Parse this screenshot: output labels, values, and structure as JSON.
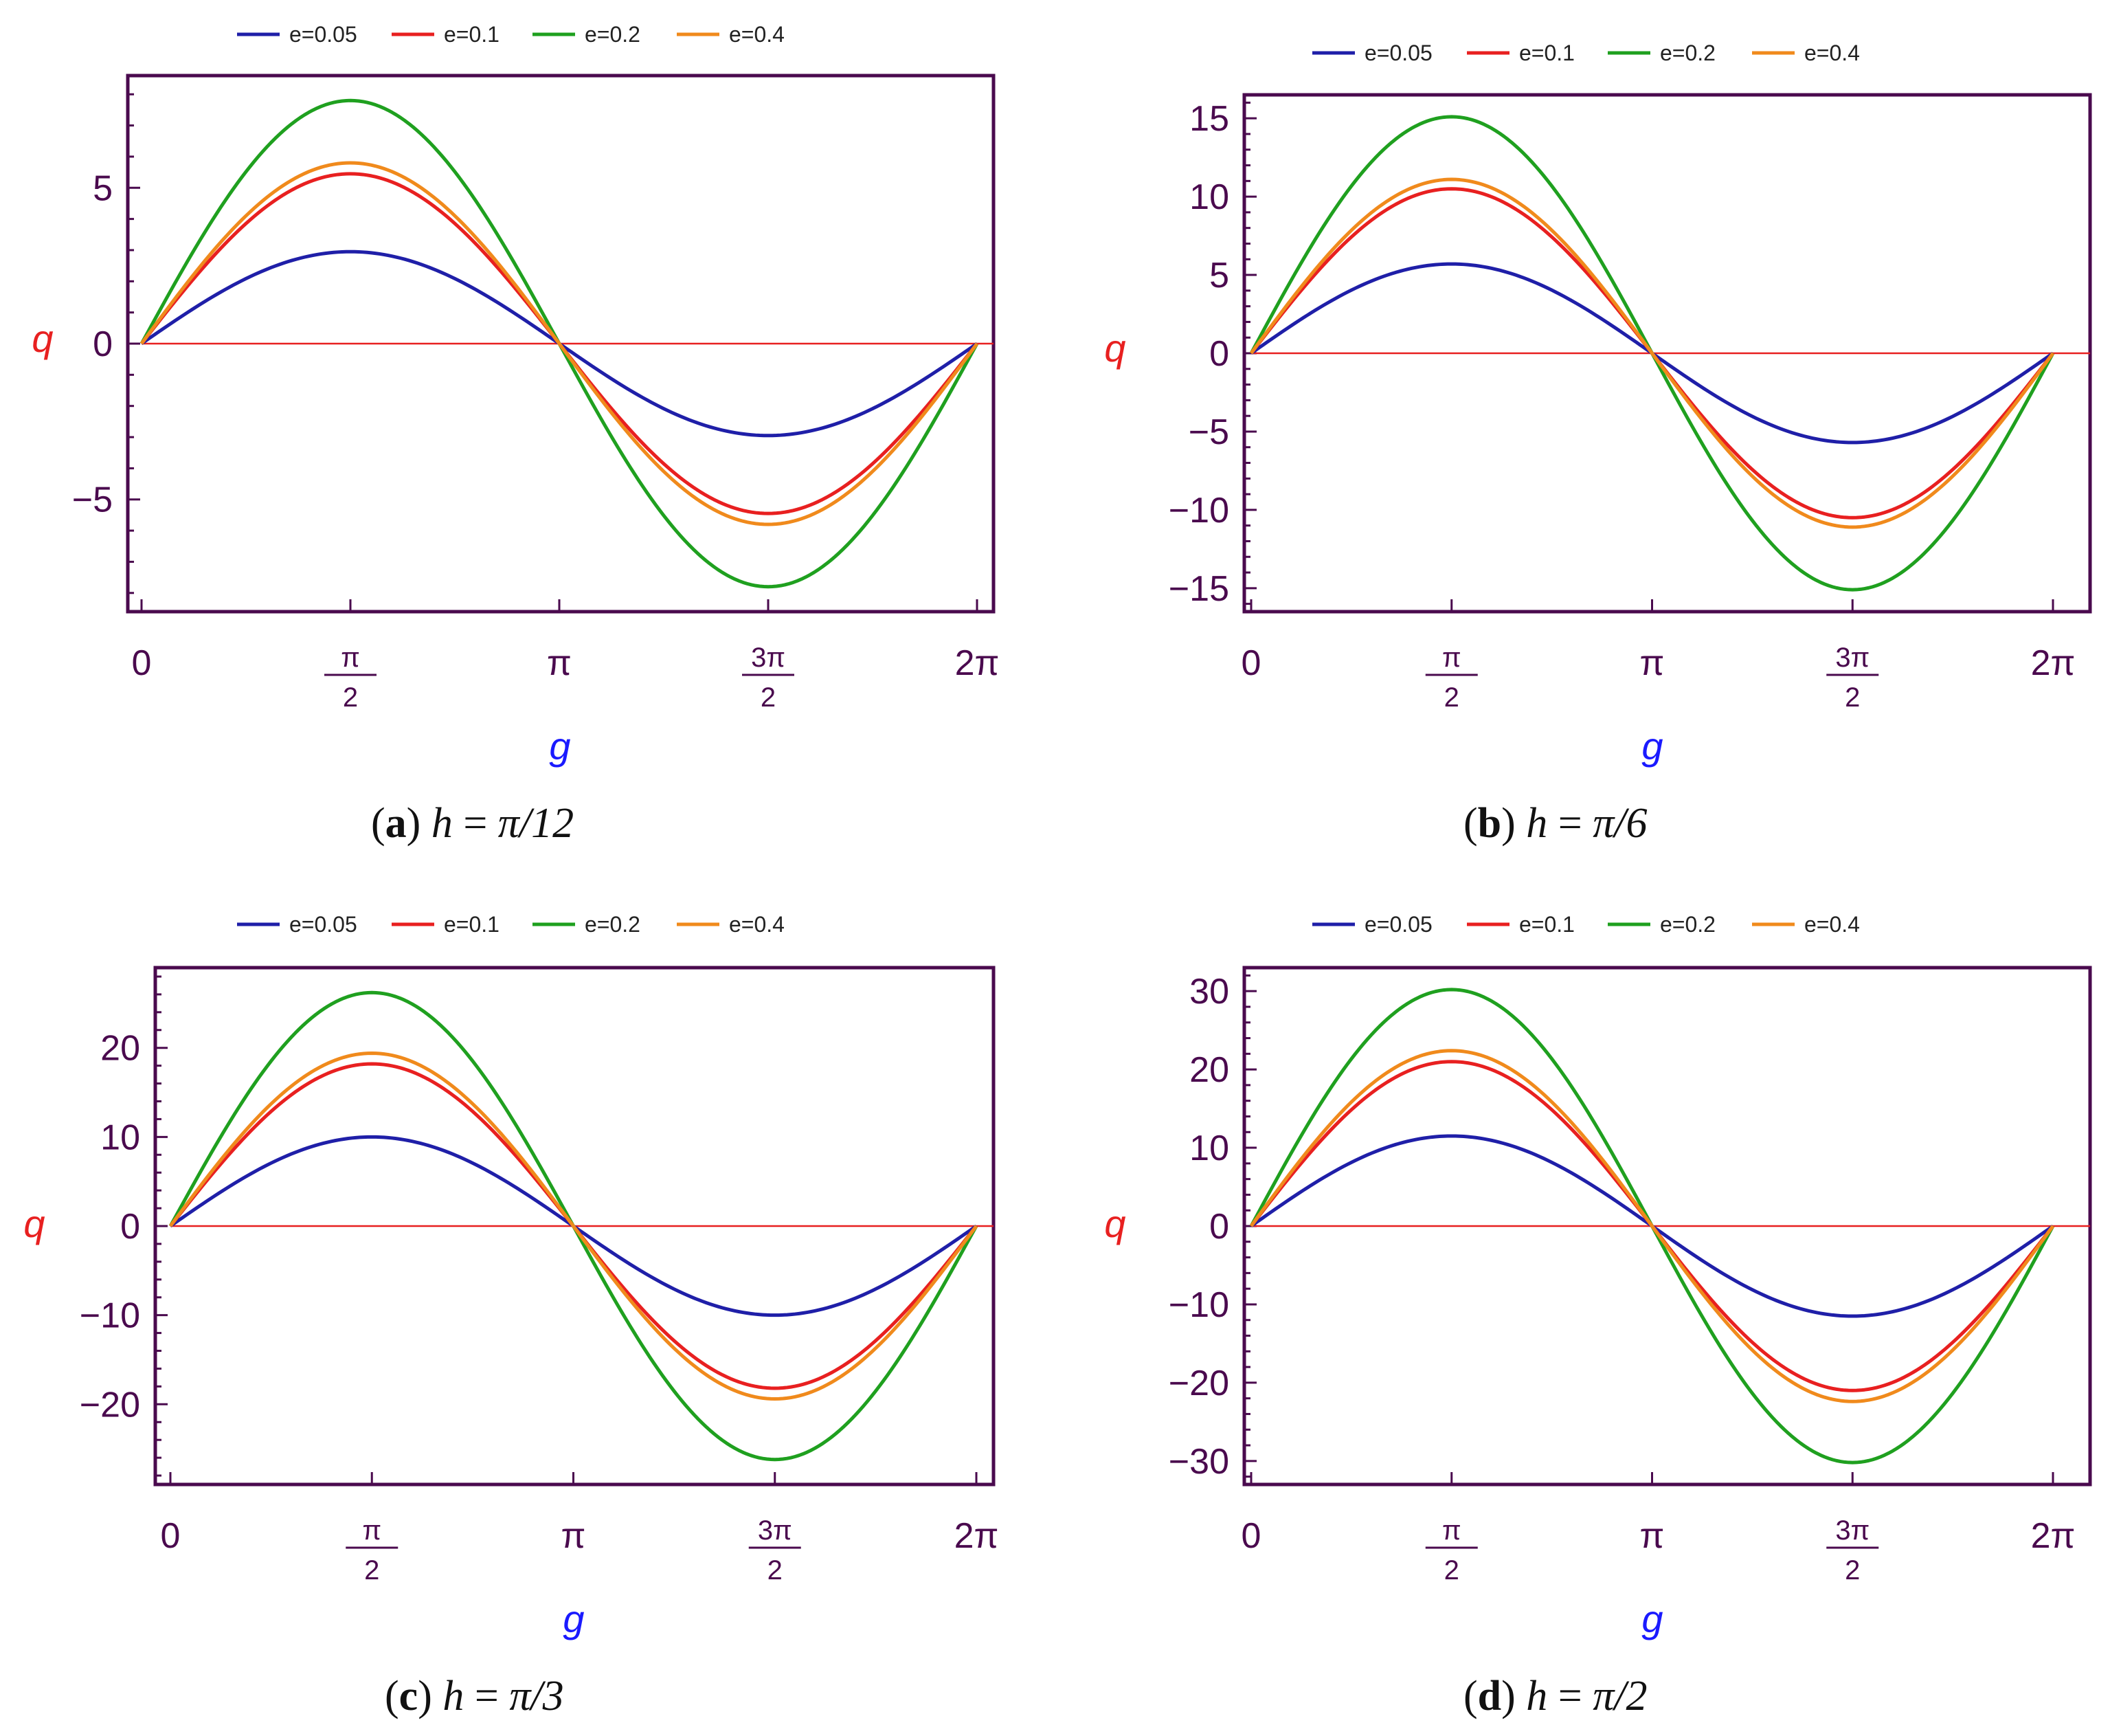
{
  "chart_data": [
    {
      "type": "line",
      "caption_label": "a",
      "caption_expr": "π/12",
      "xlabel": "g",
      "ylabel": "q",
      "xlim": [
        0,
        6.2832
      ],
      "ylim": [
        -8.6,
        8.6
      ],
      "yticks": [
        -5,
        0,
        5
      ],
      "ytick_labels": [
        "−5",
        "0",
        "5"
      ],
      "xtick_labels": [
        "0",
        "π/2",
        "π",
        "3π/2",
        "2π"
      ],
      "series": [
        {
          "name": "e=0.05",
          "amplitude": 2.95
        },
        {
          "name": "e=0.1",
          "amplitude": 5.45
        },
        {
          "name": "e=0.2",
          "amplitude": 7.8
        },
        {
          "name": "e=0.4",
          "amplitude": 5.8
        }
      ]
    },
    {
      "type": "line",
      "caption_label": "b",
      "caption_expr": "π/6",
      "xlabel": "g",
      "ylabel": "q",
      "xlim": [
        0,
        6.2832
      ],
      "ylim": [
        -16.5,
        16.5
      ],
      "yticks": [
        -15,
        -10,
        -5,
        0,
        5,
        10,
        15
      ],
      "ytick_labels": [
        "−15",
        "−10",
        "−5",
        "0",
        "5",
        "10",
        "15"
      ],
      "xtick_labels": [
        "0",
        "π/2",
        "π",
        "3π/2",
        "2π"
      ],
      "series": [
        {
          "name": "e=0.05",
          "amplitude": 5.7
        },
        {
          "name": "e=0.1",
          "amplitude": 10.5
        },
        {
          "name": "e=0.2",
          "amplitude": 15.1
        },
        {
          "name": "e=0.4",
          "amplitude": 11.1
        }
      ]
    },
    {
      "type": "line",
      "caption_label": "c",
      "caption_expr": "π/3",
      "xlabel": "g",
      "ylabel": "q",
      "xlim": [
        0,
        6.2832
      ],
      "ylim": [
        -29,
        29
      ],
      "yticks": [
        -20,
        -10,
        0,
        10,
        20
      ],
      "ytick_labels": [
        "−20",
        "−10",
        "0",
        "10",
        "20"
      ],
      "xtick_labels": [
        "0",
        "π/2",
        "π",
        "3π/2",
        "2π"
      ],
      "series": [
        {
          "name": "e=0.05",
          "amplitude": 10.0
        },
        {
          "name": "e=0.1",
          "amplitude": 18.2
        },
        {
          "name": "e=0.2",
          "amplitude": 26.2
        },
        {
          "name": "e=0.4",
          "amplitude": 19.4
        }
      ]
    },
    {
      "type": "line",
      "caption_label": "d",
      "caption_expr": "π/2",
      "xlabel": "g",
      "ylabel": "q",
      "xlim": [
        0,
        6.2832
      ],
      "ylim": [
        -33,
        33
      ],
      "yticks": [
        -30,
        -20,
        -10,
        0,
        10,
        20,
        30
      ],
      "ytick_labels": [
        "−30",
        "−20",
        "−10",
        "0",
        "10",
        "20",
        "30"
      ],
      "xtick_labels": [
        "0",
        "π/2",
        "π",
        "3π/2",
        "2π"
      ],
      "series": [
        {
          "name": "e=0.05",
          "amplitude": 11.5
        },
        {
          "name": "e=0.1",
          "amplitude": 21.0
        },
        {
          "name": "e=0.2",
          "amplitude": 30.2
        },
        {
          "name": "e=0.4",
          "amplitude": 22.4
        }
      ]
    }
  ],
  "series_colors": [
    "#1f1fa8",
    "#e82020",
    "#1fa01f",
    "#f08a1c"
  ],
  "colors": {
    "frame": "#4a0a4e",
    "tick_text": "#4a0a4e",
    "y_label": "#e82020",
    "x_label": "#1a1aff",
    "zero_line": "#e82020"
  },
  "caption_var": "h"
}
